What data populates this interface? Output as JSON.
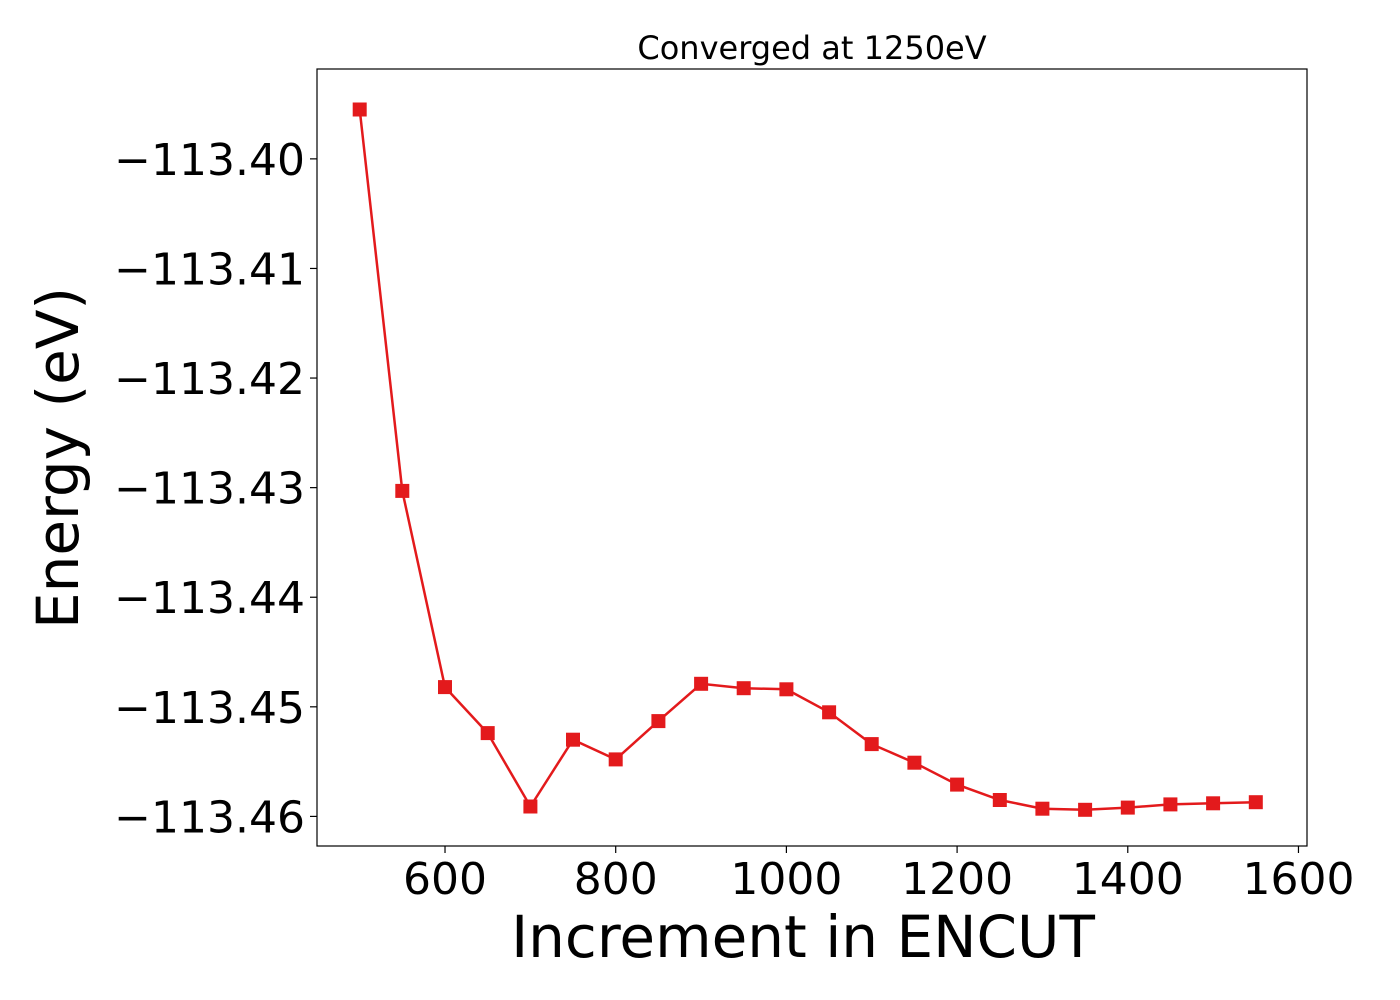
{
  "chart_data": {
    "type": "line",
    "title": "Converged at 1250eV",
    "xlabel": "Increment in ENCUT",
    "ylabel": "Energy (eV)",
    "xlim": [
      450,
      1610
    ],
    "ylim": [
      -113.4627,
      -113.3918
    ],
    "xticks": [
      600,
      800,
      1000,
      1200,
      1400,
      1600
    ],
    "yticks": [
      -113.4,
      -113.41,
      -113.42,
      -113.43,
      -113.44,
      -113.45,
      -113.46
    ],
    "ytick_labels": [
      "−113.40",
      "−113.41",
      "−113.42",
      "−113.43",
      "−113.44",
      "−113.45",
      "−113.46"
    ],
    "grid": false,
    "series": [
      {
        "color": "#e31a1c",
        "marker": "square",
        "x": [
          500,
          550,
          600,
          650,
          700,
          750,
          800,
          850,
          900,
          950,
          1000,
          1050,
          1100,
          1150,
          1200,
          1250,
          1300,
          1350,
          1400,
          1450,
          1500,
          1550
        ],
        "y": [
          -113.3955,
          -113.4303,
          -113.4482,
          -113.4524,
          -113.4591,
          -113.453,
          -113.4548,
          -113.4513,
          -113.4479,
          -113.4483,
          -113.4484,
          -113.4505,
          -113.4534,
          -113.4551,
          -113.4571,
          -113.4585,
          -113.4593,
          -113.4594,
          -113.4592,
          -113.4589,
          -113.4588,
          -113.4587
        ]
      }
    ]
  }
}
